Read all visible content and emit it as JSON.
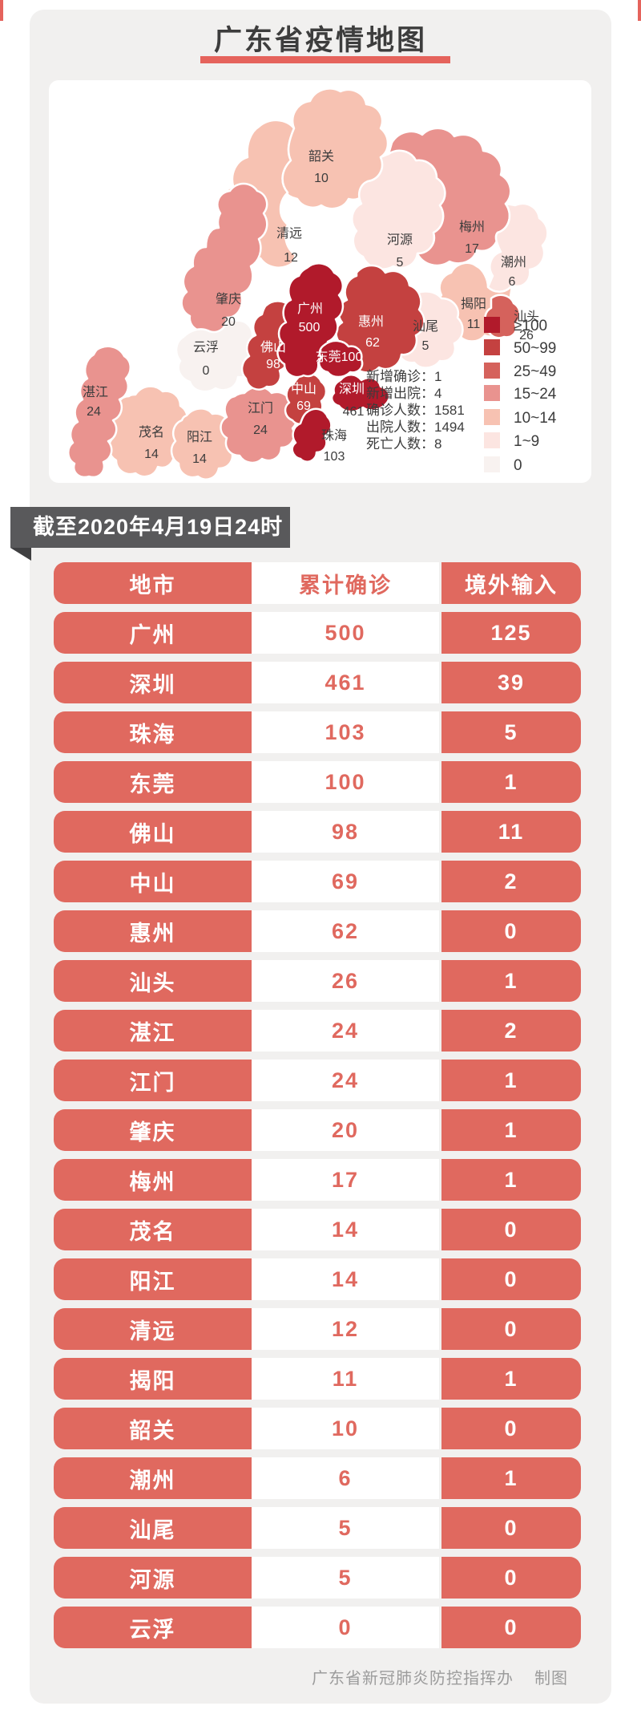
{
  "accents": {
    "red_accent": "#e5635c",
    "row_salmon": "#e0695f",
    "banner_gray": "#59595b",
    "banner_fold": "#3f3f41",
    "title_color": "#3d3d3d",
    "label_dark": "#3c3c3c",
    "footer_gray": "#9c9c9c",
    "card_gray": "#f1f0ef"
  },
  "header": {
    "title": "广东省疫情地图"
  },
  "ribbon": {
    "text": "截至2020年4月19日24时"
  },
  "map": {
    "stats_lines": [
      "新增确诊：1",
      "新增出院：4",
      "确诊人数：1581",
      "出院人数：1494",
      "死亡人数：8"
    ],
    "legend": [
      {
        "label": "≥100",
        "color": "#b11a2b"
      },
      {
        "label": "50~99",
        "color": "#c44140"
      },
      {
        "label": "25~49",
        "color": "#d5625c"
      },
      {
        "label": "15~24",
        "color": "#e9938f"
      },
      {
        "label": "10~14",
        "color": "#f7c2b2"
      },
      {
        "label": "1~9",
        "color": "#fce5e1"
      },
      {
        "label": "0",
        "color": "#f8f2f0"
      }
    ],
    "regions": [
      {
        "id": "qingyuan",
        "name": "清远",
        "value": "12",
        "bucket": 4
      },
      {
        "id": "shaoguan",
        "name": "韶关",
        "value": "10",
        "bucket": 4
      },
      {
        "id": "heyuan",
        "name": "河源",
        "value": "5",
        "bucket": 5
      },
      {
        "id": "meizhou",
        "name": "梅州",
        "value": "17",
        "bucket": 3
      },
      {
        "id": "chaozhou",
        "name": "潮州",
        "value": "6",
        "bucket": 5
      },
      {
        "id": "jieyang",
        "name": "揭阳",
        "value": "11",
        "bucket": 4
      },
      {
        "id": "shantou",
        "name": "汕头",
        "value": "26",
        "bucket": 2
      },
      {
        "id": "shanwei",
        "name": "汕尾",
        "value": "5",
        "bucket": 5
      },
      {
        "id": "zhaoqing",
        "name": "肇庆",
        "value": "20",
        "bucket": 3
      },
      {
        "id": "yunfu",
        "name": "云浮",
        "value": "0",
        "bucket": 6
      },
      {
        "id": "maoming",
        "name": "茂名",
        "value": "14",
        "bucket": 4
      },
      {
        "id": "yangjiang",
        "name": "阳江",
        "value": "14",
        "bucket": 4
      },
      {
        "id": "zhanjiang",
        "name": "湛江",
        "value": "24",
        "bucket": 3
      },
      {
        "id": "jiangmen",
        "name": "江门",
        "value": "24",
        "bucket": 3
      },
      {
        "id": "huizhou",
        "name": "惠州",
        "value": "62",
        "bucket": 1
      },
      {
        "id": "foshan",
        "name": "佛山",
        "value": "98",
        "bucket": 1
      },
      {
        "id": "zhongshan",
        "name": "中山",
        "value": "69",
        "bucket": 1
      },
      {
        "id": "zhuhai",
        "name": "珠海",
        "value": "103",
        "bucket": 0
      },
      {
        "id": "guangzhou",
        "name": "广州",
        "value": "500",
        "bucket": 0
      },
      {
        "id": "dongguan",
        "name": "东莞",
        "value": "100",
        "bucket": 0
      },
      {
        "id": "shenzhen",
        "name": "深圳",
        "value": "461",
        "bucket": 0
      }
    ]
  },
  "table": {
    "headers": [
      "地市",
      "累计确诊",
      "境外输入"
    ],
    "rows": [
      [
        "广州",
        "500",
        "125"
      ],
      [
        "深圳",
        "461",
        "39"
      ],
      [
        "珠海",
        "103",
        "5"
      ],
      [
        "东莞",
        "100",
        "1"
      ],
      [
        "佛山",
        "98",
        "11"
      ],
      [
        "中山",
        "69",
        "2"
      ],
      [
        "惠州",
        "62",
        "0"
      ],
      [
        "汕头",
        "26",
        "1"
      ],
      [
        "湛江",
        "24",
        "2"
      ],
      [
        "江门",
        "24",
        "1"
      ],
      [
        "肇庆",
        "20",
        "1"
      ],
      [
        "梅州",
        "17",
        "1"
      ],
      [
        "茂名",
        "14",
        "0"
      ],
      [
        "阳江",
        "14",
        "0"
      ],
      [
        "清远",
        "12",
        "0"
      ],
      [
        "揭阳",
        "11",
        "1"
      ],
      [
        "韶关",
        "10",
        "0"
      ],
      [
        "潮州",
        "6",
        "1"
      ],
      [
        "汕尾",
        "5",
        "0"
      ],
      [
        "河源",
        "5",
        "0"
      ],
      [
        "云浮",
        "0",
        "0"
      ]
    ]
  },
  "footer": {
    "credit": "广东省新冠肺炎防控指挥办",
    "suffix": "制图"
  },
  "chart_data": {
    "type": "table",
    "title": "广东省疫情地图",
    "as_of": "截至2020年4月19日24时",
    "columns": [
      "地市",
      "累计确诊",
      "境外输入"
    ],
    "rows": [
      [
        "广州",
        500,
        125
      ],
      [
        "深圳",
        461,
        39
      ],
      [
        "珠海",
        103,
        5
      ],
      [
        "东莞",
        100,
        1
      ],
      [
        "佛山",
        98,
        11
      ],
      [
        "中山",
        69,
        2
      ],
      [
        "惠州",
        62,
        0
      ],
      [
        "汕头",
        26,
        1
      ],
      [
        "湛江",
        24,
        2
      ],
      [
        "江门",
        24,
        1
      ],
      [
        "肇庆",
        20,
        1
      ],
      [
        "梅州",
        17,
        1
      ],
      [
        "茂名",
        14,
        0
      ],
      [
        "阳江",
        14,
        0
      ],
      [
        "清远",
        12,
        0
      ],
      [
        "揭阳",
        11,
        1
      ],
      [
        "韶关",
        10,
        0
      ],
      [
        "潮州",
        6,
        1
      ],
      [
        "汕尾",
        5,
        0
      ],
      [
        "河源",
        5,
        0
      ],
      [
        "云浮",
        0,
        0
      ]
    ],
    "summary": {
      "新增确诊": 1,
      "新增出院": 4,
      "确诊人数": 1581,
      "出院人数": 1494,
      "死亡人数": 8
    },
    "choropleth_legend": [
      "≥100",
      "50~99",
      "25~49",
      "15~24",
      "10~14",
      "1~9",
      "0"
    ],
    "legend_position": "right-bottom-of-map"
  }
}
